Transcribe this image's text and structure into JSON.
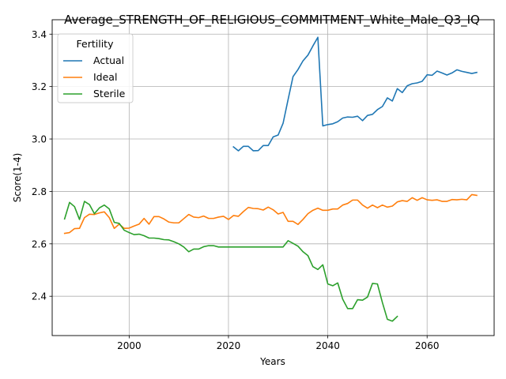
{
  "chart_data": {
    "type": "line",
    "title": "Average_STRENGTH_OF_RELIGIOUS_COMMITMENT_White_Male_Q3_IQ",
    "xlabel": "Years",
    "ylabel": "Score(1-4)",
    "xlim": [
      1984.5,
      2073.5
    ],
    "ylim": [
      2.25,
      3.455
    ],
    "xticks": [
      2000,
      2020,
      2040,
      2060
    ],
    "yticks": [
      2.4,
      2.6,
      2.8,
      3.0,
      3.2,
      3.4
    ],
    "grid": true,
    "legend": {
      "title": "Fertility",
      "placement": "upper-left"
    },
    "series": [
      {
        "name": "Actual",
        "color": "#1f77b4",
        "x": [
          2021,
          2022,
          2023,
          2024,
          2025,
          2026,
          2027,
          2028,
          2029,
          2030,
          2031,
          2032,
          2033,
          2034,
          2035,
          2036,
          2037,
          2038,
          2039,
          2040,
          2041,
          2042,
          2043,
          2044,
          2045,
          2046,
          2047,
          2048,
          2049,
          2050,
          2051,
          2052,
          2053,
          2054,
          2055,
          2056,
          2057,
          2058,
          2059,
          2060,
          2061,
          2062,
          2063,
          2064,
          2065,
          2066,
          2067,
          2068,
          2069,
          2070
        ],
        "y": [
          2.97,
          2.955,
          2.972,
          2.972,
          2.955,
          2.956,
          2.975,
          2.975,
          3.008,
          3.015,
          3.06,
          3.15,
          3.238,
          3.265,
          3.298,
          3.32,
          3.355,
          3.388,
          3.05,
          3.055,
          3.058,
          3.066,
          3.08,
          3.084,
          3.083,
          3.087,
          3.07,
          3.09,
          3.094,
          3.112,
          3.124,
          3.157,
          3.145,
          3.192,
          3.177,
          3.203,
          3.211,
          3.214,
          3.22,
          3.245,
          3.243,
          3.259,
          3.252,
          3.244,
          3.252,
          3.264,
          3.258,
          3.254,
          3.25,
          3.254
        ]
      },
      {
        "name": "Ideal",
        "color": "#ff7f0e",
        "x": [
          1987,
          1988,
          1989,
          1990,
          1991,
          1992,
          1993,
          1994,
          1995,
          1996,
          1997,
          1998,
          1999,
          2000,
          2001,
          2002,
          2003,
          2004,
          2005,
          2006,
          2007,
          2008,
          2009,
          2010,
          2011,
          2012,
          2013,
          2014,
          2015,
          2016,
          2017,
          2018,
          2019,
          2020,
          2021,
          2022,
          2023,
          2024,
          2025,
          2026,
          2027,
          2028,
          2029,
          2030,
          2031,
          2032,
          2033,
          2034,
          2035,
          2036,
          2037,
          2038,
          2039,
          2040,
          2041,
          2042,
          2043,
          2044,
          2045,
          2046,
          2047,
          2048,
          2049,
          2050,
          2051,
          2052,
          2053,
          2054,
          2055,
          2056,
          2057,
          2058,
          2059,
          2060,
          2061,
          2062,
          2063,
          2064,
          2065,
          2066,
          2067,
          2068,
          2069,
          2070
        ],
        "y": [
          2.64,
          2.643,
          2.658,
          2.659,
          2.7,
          2.713,
          2.712,
          2.718,
          2.722,
          2.7,
          2.659,
          2.675,
          2.659,
          2.66,
          2.668,
          2.675,
          2.697,
          2.675,
          2.704,
          2.704,
          2.695,
          2.683,
          2.68,
          2.68,
          2.696,
          2.712,
          2.702,
          2.7,
          2.706,
          2.697,
          2.697,
          2.702,
          2.705,
          2.693,
          2.708,
          2.705,
          2.723,
          2.739,
          2.735,
          2.734,
          2.729,
          2.74,
          2.73,
          2.714,
          2.72,
          2.686,
          2.686,
          2.674,
          2.693,
          2.715,
          2.728,
          2.736,
          2.728,
          2.728,
          2.733,
          2.733,
          2.748,
          2.754,
          2.767,
          2.767,
          2.748,
          2.736,
          2.748,
          2.738,
          2.748,
          2.74,
          2.744,
          2.76,
          2.765,
          2.762,
          2.776,
          2.766,
          2.776,
          2.768,
          2.766,
          2.768,
          2.762,
          2.762,
          2.769,
          2.768,
          2.77,
          2.768,
          2.788,
          2.785
        ]
      },
      {
        "name": "Sterile",
        "color": "#2ca02c",
        "x": [
          1987,
          1988,
          1989,
          1990,
          1991,
          1992,
          1993,
          1994,
          1995,
          1996,
          1997,
          1998,
          1999,
          2000,
          2001,
          2002,
          2003,
          2004,
          2005,
          2006,
          2007,
          2008,
          2009,
          2010,
          2011,
          2012,
          2013,
          2014,
          2015,
          2016,
          2017,
          2018,
          2019,
          2020,
          2021,
          2022,
          2023,
          2024,
          2025,
          2026,
          2027,
          2028,
          2029,
          2030,
          2031,
          2032,
          2033,
          2034,
          2035,
          2036,
          2037,
          2038,
          2039,
          2040,
          2041,
          2042,
          2043,
          2044,
          2045,
          2046,
          2047,
          2048,
          2049,
          2050,
          2051,
          2052,
          2053,
          2054
        ],
        "y": [
          2.695,
          2.758,
          2.742,
          2.693,
          2.762,
          2.75,
          2.715,
          2.737,
          2.748,
          2.733,
          2.682,
          2.678,
          2.652,
          2.643,
          2.635,
          2.637,
          2.631,
          2.622,
          2.622,
          2.62,
          2.616,
          2.615,
          2.608,
          2.6,
          2.588,
          2.57,
          2.58,
          2.58,
          2.589,
          2.593,
          2.593,
          2.588,
          2.588,
          2.588,
          2.588,
          2.588,
          2.588,
          2.588,
          2.588,
          2.588,
          2.588,
          2.588,
          2.588,
          2.588,
          2.588,
          2.612,
          2.602,
          2.591,
          2.57,
          2.555,
          2.513,
          2.502,
          2.52,
          2.447,
          2.44,
          2.451,
          2.389,
          2.353,
          2.353,
          2.387,
          2.385,
          2.397,
          2.449,
          2.447,
          2.376,
          2.312,
          2.305,
          2.323
        ]
      }
    ]
  }
}
